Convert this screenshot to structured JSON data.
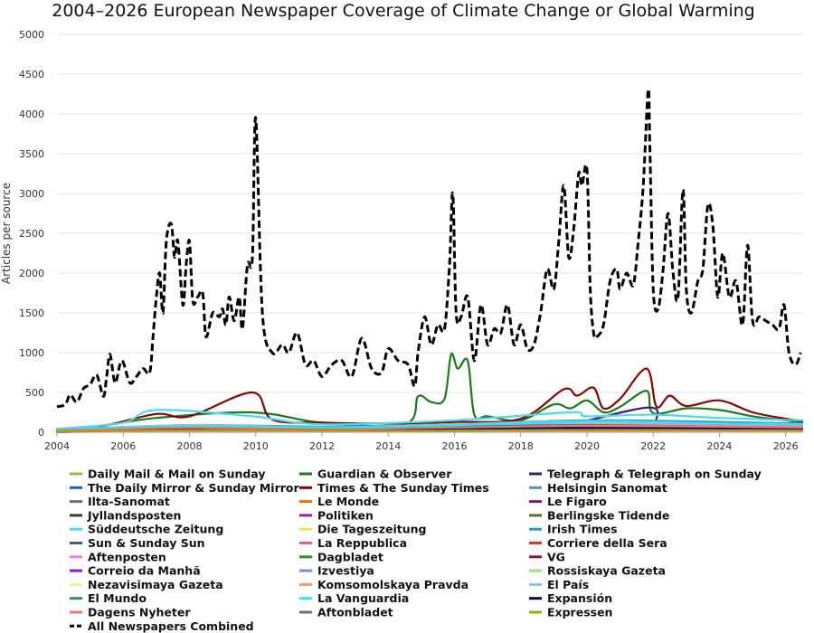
{
  "chart_data": {
    "type": "line",
    "title": "2004–2026 European Newspaper Coverage of Climate Change or Global Warming",
    "xlabel": "",
    "ylabel": "Articles per source",
    "xlim": [
      2004,
      2026.5
    ],
    "ylim": [
      0,
      5000
    ],
    "x_ticks": [
      2004,
      2006,
      2008,
      2010,
      2012,
      2014,
      2016,
      2018,
      2020,
      2022,
      2024,
      2026
    ],
    "y_ticks": [
      0,
      500,
      1000,
      1500,
      2000,
      2500,
      3000,
      3500,
      4000,
      4500,
      5000
    ],
    "grid": true,
    "legend_position": "bottom",
    "series": [
      {
        "name": "Daily Mail & Mail on Sunday",
        "color": "#8bc34a",
        "x": [
          2004,
          2007,
          2010,
          2013,
          2016,
          2019,
          2022,
          2026.5
        ],
        "y": [
          20,
          60,
          80,
          50,
          60,
          80,
          70,
          60
        ]
      },
      {
        "name": "Guardian & Observer",
        "color": "#1b7a1b",
        "x": [
          2004,
          2005.5,
          2007,
          2009.9,
          2012,
          2014.5,
          2014.9,
          2015.3,
          2015.7,
          2015.9,
          2016.1,
          2016.4,
          2016.6,
          2017,
          2018,
          2019,
          2019.5,
          2020,
          2020.5,
          2021,
          2021.8,
          2022,
          2023,
          2024,
          2025,
          2026,
          2026.5
        ],
        "y": [
          40,
          90,
          180,
          250,
          120,
          100,
          450,
          380,
          420,
          980,
          800,
          900,
          220,
          200,
          150,
          350,
          300,
          400,
          250,
          320,
          520,
          240,
          300,
          280,
          200,
          150,
          120
        ]
      },
      {
        "name": "Telegraph & Telegraph on Sunday",
        "color": "#3b1f6e",
        "x": [
          2004,
          2007,
          2010,
          2013,
          2016,
          2019,
          2021.9,
          2022.2,
          2024,
          2026.5
        ],
        "y": [
          15,
          40,
          60,
          35,
          50,
          70,
          310,
          60,
          50,
          40
        ]
      },
      {
        "name": "The Daily Mirror & Sunday Mirror",
        "color": "#1f5fbf",
        "x": [
          2004,
          2008,
          2012,
          2016,
          2020,
          2024,
          2026.5
        ],
        "y": [
          10,
          30,
          25,
          30,
          40,
          35,
          30
        ]
      },
      {
        "name": "Times & The Sunday Times",
        "color": "#8b0000",
        "x": [
          2004,
          2005.5,
          2007,
          2008,
          2009.9,
          2010.5,
          2012,
          2014,
          2016,
          2018,
          2019.3,
          2019.7,
          2020.2,
          2020.5,
          2021,
          2021.8,
          2022.1,
          2022.5,
          2023,
          2024,
          2025,
          2026,
          2026.5
        ],
        "y": [
          30,
          90,
          230,
          200,
          500,
          160,
          120,
          110,
          130,
          170,
          540,
          460,
          560,
          300,
          420,
          800,
          320,
          460,
          330,
          400,
          250,
          170,
          140
        ]
      },
      {
        "name": "Helsingin Sanomat",
        "color": "#5f8ea8",
        "x": [
          2004,
          2008,
          2012,
          2016,
          2020,
          2024,
          2026.5
        ],
        "y": [
          20,
          60,
          40,
          60,
          130,
          80,
          70
        ]
      },
      {
        "name": "Ilta-Sanomat",
        "color": "#707070",
        "x": [
          2004,
          2009,
          2014,
          2019,
          2026.5
        ],
        "y": [
          5,
          15,
          12,
          20,
          15
        ]
      },
      {
        "name": "Le Monde",
        "color": "#e37212",
        "x": [
          2004,
          2008,
          2012,
          2016,
          2020,
          2024,
          2026.5
        ],
        "y": [
          40,
          80,
          60,
          100,
          90,
          70,
          60
        ]
      },
      {
        "name": "Le Figaro",
        "color": "#8b1a6b",
        "x": [
          2004,
          2008,
          2012,
          2016,
          2020,
          2024,
          2026.5
        ],
        "y": [
          25,
          60,
          45,
          70,
          70,
          50,
          45
        ]
      },
      {
        "name": "Jyllandsposten",
        "color": "#3a3a1a",
        "x": [
          2004,
          2009,
          2014,
          2019,
          2026.5
        ],
        "y": [
          15,
          50,
          30,
          40,
          30
        ]
      },
      {
        "name": "Politiken",
        "color": "#8e2aa8",
        "x": [
          2004,
          2009,
          2014,
          2019,
          2026.5
        ],
        "y": [
          20,
          70,
          40,
          60,
          50
        ]
      },
      {
        "name": "Berlingske Tidende",
        "color": "#5b6e2e",
        "x": [
          2004,
          2009,
          2014,
          2019,
          2026.5
        ],
        "y": [
          15,
          45,
          30,
          40,
          30
        ]
      },
      {
        "name": "Süddeutsche Zeitung",
        "color": "#4fd8f0",
        "x": [
          2004,
          2006,
          2007,
          2009.9,
          2012,
          2016,
          2019.5,
          2020,
          2022,
          2024,
          2026.5
        ],
        "y": [
          40,
          120,
          280,
          200,
          100,
          150,
          250,
          200,
          220,
          180,
          150
        ]
      },
      {
        "name": "Die Tageszeitung",
        "color": "#f2e34a",
        "x": [
          2004,
          2008,
          2012,
          2016,
          2020,
          2024,
          2026.5
        ],
        "y": [
          30,
          80,
          60,
          80,
          120,
          90,
          80
        ]
      },
      {
        "name": "Irish Times",
        "color": "#1f9fc0",
        "x": [
          2004,
          2008,
          2012,
          2016,
          2020,
          2024,
          2026.5
        ],
        "y": [
          30,
          90,
          70,
          100,
          150,
          130,
          110
        ]
      },
      {
        "name": "Sun & Sunday Sun",
        "color": "#555577",
        "x": [
          2004,
          2009,
          2014,
          2019,
          2026.5
        ],
        "y": [
          10,
          30,
          20,
          25,
          20
        ]
      },
      {
        "name": "La Reppublica",
        "color": "#e85aa5",
        "x": [
          2004,
          2008,
          2012,
          2016,
          2020,
          2024,
          2026.5
        ],
        "y": [
          20,
          60,
          50,
          70,
          80,
          60,
          50
        ]
      },
      {
        "name": "Corriere della Sera",
        "color": "#e8321a",
        "x": [
          2004,
          2008,
          2012,
          2016,
          2020,
          2024,
          2026.5
        ],
        "y": [
          20,
          50,
          40,
          60,
          70,
          55,
          45
        ]
      },
      {
        "name": "Aftenposten",
        "color": "#f27fe8",
        "x": [
          2004,
          2008,
          2012,
          2016,
          2020,
          2024,
          2026.5
        ],
        "y": [
          20,
          70,
          50,
          80,
          100,
          90,
          80
        ]
      },
      {
        "name": "Dagbladet",
        "color": "#2e8b2e",
        "x": [
          2004,
          2009,
          2014,
          2019,
          2026.5
        ],
        "y": [
          10,
          30,
          20,
          30,
          25
        ]
      },
      {
        "name": "VG",
        "color": "#8b1a2e",
        "x": [
          2004,
          2009,
          2014,
          2019,
          2026.5
        ],
        "y": [
          10,
          40,
          25,
          40,
          30
        ]
      },
      {
        "name": "Correio da Manhã",
        "color": "#8e1ad8",
        "x": [
          2004,
          2009,
          2014,
          2019,
          2026.5
        ],
        "y": [
          5,
          20,
          15,
          25,
          20
        ]
      },
      {
        "name": "Izvestiya",
        "color": "#7a8ec0",
        "x": [
          2004,
          2009,
          2014,
          2019,
          2026.5
        ],
        "y": [
          10,
          25,
          15,
          20,
          15
        ]
      },
      {
        "name": "Rossiskaya Gazeta",
        "color": "#9ed88e",
        "x": [
          2004,
          2009,
          2014,
          2019,
          2026.5
        ],
        "y": [
          10,
          25,
          20,
          25,
          20
        ]
      },
      {
        "name": "Nezavisimaya Gazeta",
        "color": "#f7f08a",
        "x": [
          2004,
          2009,
          2014,
          2019,
          2026.5
        ],
        "y": [
          10,
          30,
          20,
          25,
          20
        ]
      },
      {
        "name": "Komsomolskaya Pravda",
        "color": "#f29a6e",
        "x": [
          2004,
          2009,
          2014,
          2019,
          2026.5
        ],
        "y": [
          5,
          15,
          10,
          15,
          10
        ]
      },
      {
        "name": "El País",
        "color": "#8ec0f2",
        "x": [
          2004,
          2008,
          2012,
          2016,
          2020,
          2024,
          2026.5
        ],
        "y": [
          30,
          90,
          60,
          100,
          140,
          110,
          100
        ]
      },
      {
        "name": "El Mundo",
        "color": "#2e8a8a",
        "x": [
          2004,
          2008,
          2012,
          2016,
          2020,
          2024,
          2026.5
        ],
        "y": [
          25,
          70,
          50,
          70,
          90,
          70,
          60
        ]
      },
      {
        "name": "La Vanguardia",
        "color": "#2ee8e0",
        "x": [
          2004,
          2008,
          2012,
          2016,
          2020,
          2024,
          2026.5
        ],
        "y": [
          30,
          80,
          60,
          90,
          130,
          110,
          100
        ]
      },
      {
        "name": "Expansión",
        "color": "#0a0a4a",
        "x": [
          2004,
          2008,
          2012,
          2016,
          2020,
          2024,
          2026.5
        ],
        "y": [
          10,
          30,
          25,
          40,
          60,
          50,
          40
        ]
      },
      {
        "name": "Dagens Nyheter",
        "color": "#e87a7a",
        "x": [
          2004,
          2008,
          2012,
          2016,
          2020,
          2024,
          2026.5
        ],
        "y": [
          20,
          60,
          40,
          60,
          80,
          70,
          60
        ]
      },
      {
        "name": "Aftonbladet",
        "color": "#7a6a6a",
        "x": [
          2004,
          2009,
          2014,
          2019,
          2026.5
        ],
        "y": [
          10,
          30,
          20,
          30,
          25
        ]
      },
      {
        "name": "Expressen",
        "color": "#a8a01a",
        "x": [
          2004,
          2009,
          2014,
          2019,
          2026.5
        ],
        "y": [
          10,
          25,
          15,
          25,
          20
        ]
      },
      {
        "name": "All Newspapers Combined",
        "color": "#000000",
        "dashed": true,
        "x": [
          2004,
          2004.25,
          2004.4,
          2004.6,
          2004.8,
          2005,
          2005.2,
          2005.4,
          2005.5,
          2005.6,
          2005.75,
          2005.9,
          2006,
          2006.2,
          2006.4,
          2006.6,
          2006.8,
          2006.9,
          2007,
          2007.1,
          2007.2,
          2007.3,
          2007.45,
          2007.55,
          2007.65,
          2007.8,
          2007.9,
          2008,
          2008.1,
          2008.25,
          2008.4,
          2008.5,
          2008.7,
          2008.9,
          2009,
          2009.1,
          2009.2,
          2009.35,
          2009.5,
          2009.6,
          2009.75,
          2009.9,
          2010,
          2010.2,
          2010.5,
          2010.8,
          2011,
          2011.25,
          2011.5,
          2011.75,
          2012,
          2012.3,
          2012.6,
          2012.9,
          2013.2,
          2013.5,
          2013.8,
          2014,
          2014.3,
          2014.6,
          2014.8,
          2014.9,
          2015.1,
          2015.3,
          2015.5,
          2015.7,
          2015.85,
          2015.95,
          2016.05,
          2016.2,
          2016.4,
          2016.6,
          2016.8,
          2017,
          2017.2,
          2017.4,
          2017.6,
          2017.8,
          2018,
          2018.2,
          2018.4,
          2018.6,
          2018.8,
          2019,
          2019.15,
          2019.3,
          2019.45,
          2019.6,
          2019.75,
          2019.85,
          2020,
          2020.1,
          2020.2,
          2020.3,
          2020.5,
          2020.7,
          2020.9,
          2021,
          2021.2,
          2021.4,
          2021.55,
          2021.7,
          2021.85,
          2021.9,
          2022,
          2022.15,
          2022.3,
          2022.45,
          2022.6,
          2022.75,
          2022.9,
          2023,
          2023.15,
          2023.35,
          2023.5,
          2023.65,
          2023.8,
          2023.95,
          2024.1,
          2024.3,
          2024.5,
          2024.7,
          2024.85,
          2025,
          2025.2,
          2025.4,
          2025.6,
          2025.8,
          2025.95,
          2026.1,
          2026.3,
          2026.45
        ],
        "y": [
          320,
          350,
          470,
          380,
          550,
          600,
          720,
          450,
          700,
          980,
          620,
          850,
          880,
          620,
          700,
          800,
          750,
          1200,
          1700,
          2000,
          1500,
          2400,
          2620,
          2200,
          2400,
          1600,
          2100,
          2400,
          1650,
          1700,
          1750,
          1200,
          1500,
          1450,
          1550,
          1350,
          1700,
          1400,
          1700,
          1300,
          2100,
          2200,
          3950,
          1500,
          1000,
          1100,
          1000,
          1250,
          850,
          900,
          700,
          850,
          900,
          700,
          1180,
          800,
          750,
          1050,
          900,
          850,
          580,
          1000,
          1450,
          1100,
          1350,
          1300,
          2100,
          3000,
          1500,
          1450,
          1700,
          900,
          1600,
          1100,
          1300,
          1250,
          1600,
          1100,
          1350,
          1050,
          1100,
          1500,
          2050,
          1800,
          2400,
          3100,
          2200,
          2550,
          3250,
          3100,
          3300,
          1800,
          1250,
          1200,
          1350,
          1900,
          2050,
          1800,
          2000,
          1850,
          2400,
          3100,
          4300,
          3600,
          1800,
          1550,
          2050,
          2750,
          2000,
          1700,
          3050,
          1800,
          1500,
          1900,
          2050,
          2850,
          2600,
          1700,
          2250,
          1700,
          1900,
          1350,
          2350,
          1400,
          1450,
          1400,
          1350,
          1300,
          1600,
          1000,
          850,
          1000
        ]
      }
    ]
  }
}
